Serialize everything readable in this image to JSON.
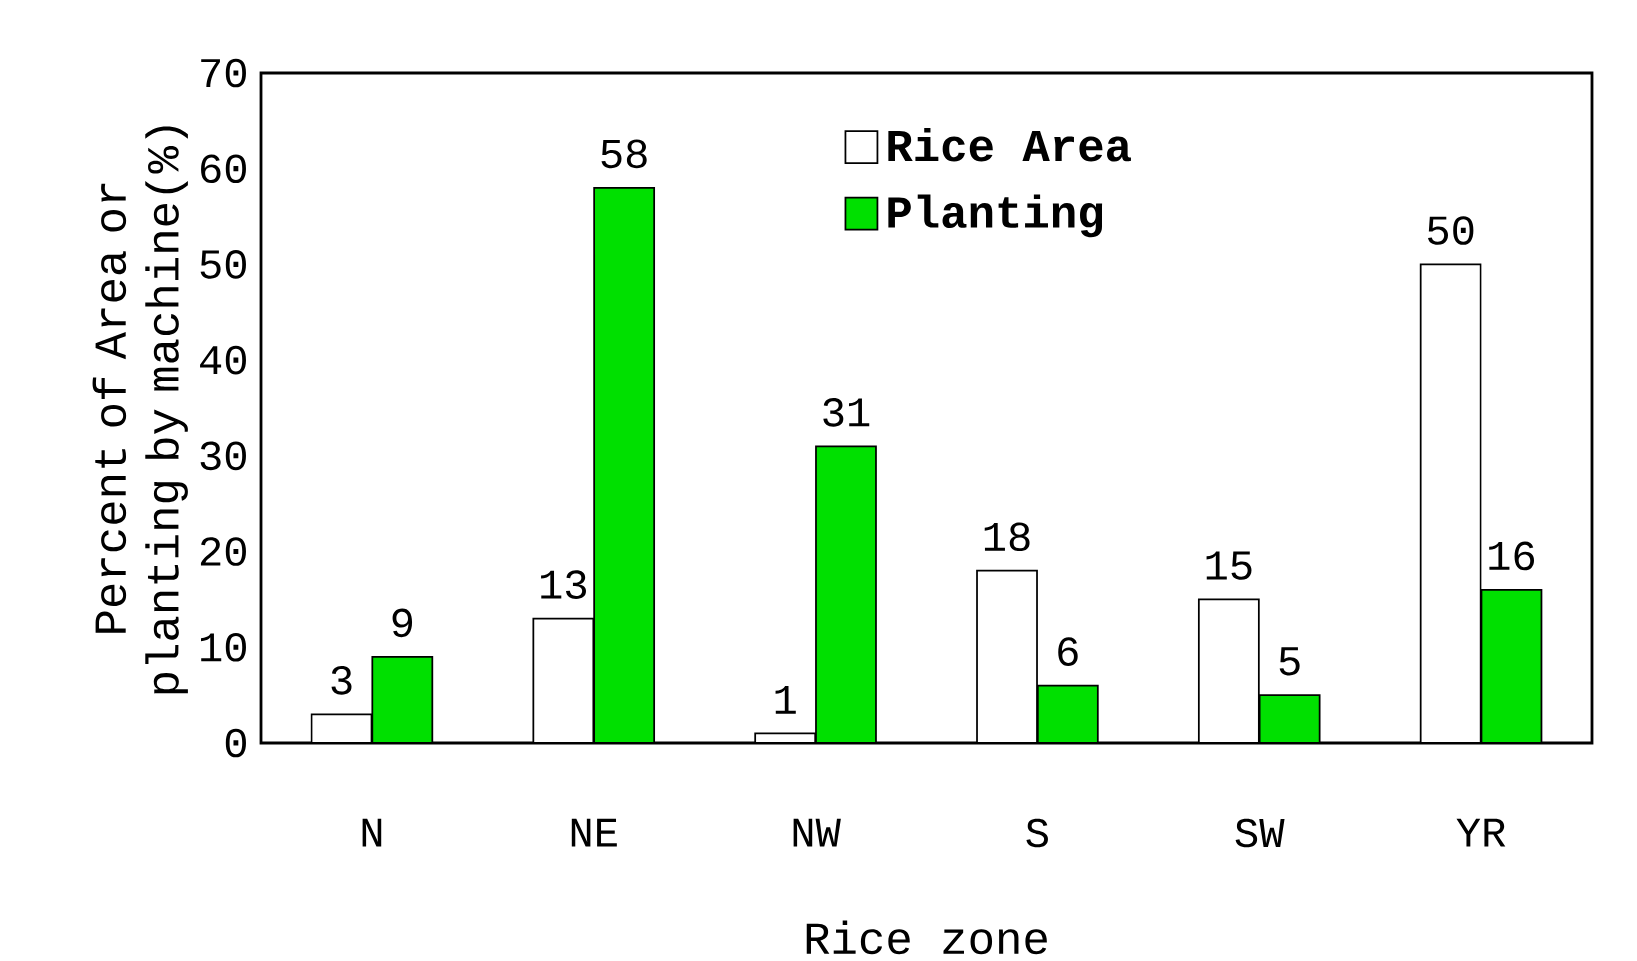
{
  "chart_data": {
    "type": "bar",
    "xlabel": "Rice zone",
    "ylabel": "Percent of Area or planting by machine(%)",
    "categories": [
      "N",
      "NE",
      "NW",
      "S",
      "SW",
      "YR"
    ],
    "series": [
      {
        "name": "Rice Area",
        "color": "#ffffff",
        "values": [
          3,
          13,
          1,
          18,
          15,
          50
        ]
      },
      {
        "name": "Planting",
        "color": "#00e000",
        "values": [
          9,
          58,
          31,
          6,
          5,
          16
        ]
      }
    ],
    "ylim": [
      0,
      70
    ],
    "yticks": [
      0,
      10,
      20,
      30,
      40,
      50,
      60,
      70
    ],
    "data_labels": true,
    "legend": "top",
    "grid": false
  }
}
